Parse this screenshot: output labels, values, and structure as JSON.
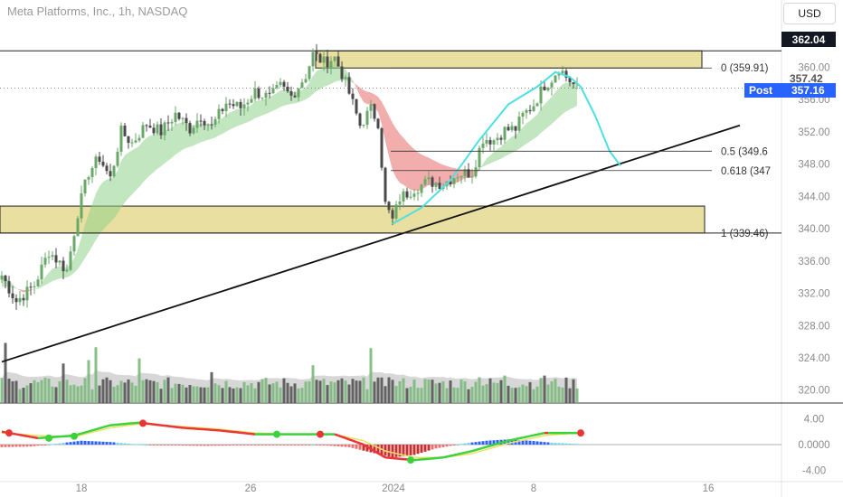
{
  "header": {
    "symbol_title": "Meta Platforms, Inc., 1h, NASDAQ",
    "currency_button": "USD"
  },
  "price_tags": {
    "top_level": "362.04",
    "last_price": "357.42",
    "post_label": "Post",
    "post_price": "357.16"
  },
  "colors": {
    "up": "#6aa86a",
    "down": "#4a4a4a",
    "band_up": "#8fd18a",
    "band_down": "#e86a6a",
    "zone_fill": "#e8dfa0",
    "projection": "#4ee0e0",
    "post_blue": "#2962ff",
    "osc_up": "#3ad13a",
    "osc_down": "#e83535"
  },
  "chart_data": [
    {
      "type": "candlestick",
      "title": "",
      "x_tick_labels": [
        "18",
        "26",
        "2024",
        "8",
        "16"
      ],
      "y_tick_labels": [
        "320.00",
        "324.00",
        "328.00",
        "332.00",
        "336.00",
        "340.00",
        "344.00",
        "348.00",
        "352.00",
        "356.00",
        "360.00"
      ],
      "y_ticks": [
        320,
        324,
        328,
        332,
        336,
        340,
        344,
        348,
        352,
        356,
        360
      ],
      "ylim": [
        318.4,
        365.2
      ],
      "n_bars": 160,
      "price_path_keypoints": [
        [
          0,
          334.2
        ],
        [
          4,
          331.0
        ],
        [
          9,
          333.0
        ],
        [
          13,
          337.2
        ],
        [
          18,
          334.8
        ],
        [
          21,
          342.0
        ],
        [
          24,
          347.0
        ],
        [
          27,
          348.8
        ],
        [
          30,
          346.2
        ],
        [
          33,
          352.0
        ],
        [
          36,
          350.6
        ],
        [
          40,
          353.0
        ],
        [
          44,
          352.0
        ],
        [
          48,
          354.2
        ],
        [
          52,
          352.4
        ],
        [
          55,
          354.0
        ],
        [
          58,
          352.6
        ],
        [
          62,
          355.6
        ],
        [
          66,
          355.0
        ],
        [
          70,
          357.0
        ],
        [
          74,
          356.2
        ],
        [
          77,
          357.6
        ],
        [
          80,
          356.4
        ],
        [
          84,
          359.0
        ],
        [
          86,
          361.6
        ],
        [
          89,
          360.6
        ],
        [
          92,
          361.2
        ],
        [
          94,
          359.2
        ],
        [
          96,
          356.8
        ],
        [
          99,
          352.8
        ],
        [
          102,
          354.8
        ],
        [
          104,
          353.2
        ],
        [
          106,
          343.0
        ],
        [
          108,
          341.0
        ],
        [
          110,
          343.8
        ],
        [
          114,
          345.0
        ],
        [
          118,
          345.8
        ],
        [
          122,
          345.6
        ],
        [
          126,
          346.8
        ],
        [
          130,
          347.0
        ],
        [
          133,
          351.2
        ],
        [
          136,
          351.0
        ],
        [
          139,
          352.2
        ],
        [
          142,
          352.4
        ],
        [
          144,
          354.0
        ],
        [
          147,
          355.4
        ],
        [
          150,
          357.8
        ],
        [
          152,
          358.6
        ],
        [
          154,
          360.0
        ],
        [
          156,
          358.8
        ],
        [
          159,
          357.4
        ]
      ],
      "volume_spikes": [
        [
          1,
          7.0
        ],
        [
          26,
          6.5
        ],
        [
          24,
          5.0
        ],
        [
          17,
          4.6
        ],
        [
          38,
          5.2
        ],
        [
          58,
          3.6
        ],
        [
          86,
          4.4
        ],
        [
          102,
          6.4
        ],
        [
          107,
          3.0
        ],
        [
          132,
          3.0
        ],
        [
          139,
          3.2
        ],
        [
          150,
          3.2
        ]
      ],
      "volume_ylim": [
        0,
        10
      ],
      "horizontal_lines": [
        {
          "kind": "level",
          "value": 362.04
        },
        {
          "kind": "level",
          "value": 339.46
        },
        {
          "kind": "dotted",
          "value": 357.42
        }
      ],
      "zones": [
        {
          "from": 359.91,
          "to": 362.04,
          "x_start_bar": 86
        },
        {
          "from": 339.46,
          "to": 342.8,
          "x_start_bar": 0
        }
      ],
      "fibonacci": [
        {
          "label": "0 (359.91)",
          "value": 359.91
        },
        {
          "label": "0.5 (349.6",
          "value": 349.6
        },
        {
          "label": "0.618 (347",
          "value": 347.2
        },
        {
          "label": "1 (339.46)",
          "value": 339.46
        }
      ],
      "trendline": [
        [
          0,
          323.5
        ],
        [
          204,
          352.8
        ]
      ],
      "projection_curve": [
        [
          108,
          340.6
        ],
        [
          116,
          342.6
        ],
        [
          124,
          346.0
        ],
        [
          132,
          351.0
        ],
        [
          140,
          355.4
        ],
        [
          148,
          357.6
        ],
        [
          153,
          359.4
        ],
        [
          157,
          358.8
        ],
        [
          160,
          357.6
        ],
        [
          164,
          354.0
        ],
        [
          168,
          349.6
        ],
        [
          171,
          347.8
        ]
      ]
    },
    {
      "type": "line",
      "title": "",
      "y_tick_labels": [
        "4.00",
        "0.0000",
        "-4.00"
      ],
      "y_ticks": [
        4,
        0,
        -4
      ],
      "ylim": [
        -5.6,
        5.6
      ],
      "series_keypoints": [
        [
          0,
          2.0
        ],
        [
          10,
          1.0
        ],
        [
          20,
          1.4
        ],
        [
          30,
          3.0
        ],
        [
          38,
          3.4
        ],
        [
          50,
          2.6
        ],
        [
          60,
          2.2
        ],
        [
          70,
          1.6
        ],
        [
          80,
          1.6
        ],
        [
          92,
          1.6
        ],
        [
          100,
          0.0
        ],
        [
          106,
          -2.0
        ],
        [
          114,
          -2.4
        ],
        [
          122,
          -2.0
        ],
        [
          130,
          -1.0
        ],
        [
          140,
          0.6
        ],
        [
          150,
          1.8
        ],
        [
          159,
          1.8
        ]
      ],
      "signal_keypoints": [
        [
          0,
          1.8
        ],
        [
          10,
          1.4
        ],
        [
          20,
          1.2
        ],
        [
          30,
          2.6
        ],
        [
          38,
          3.2
        ],
        [
          50,
          2.8
        ],
        [
          60,
          2.4
        ],
        [
          70,
          1.8
        ],
        [
          80,
          1.6
        ],
        [
          92,
          1.6
        ],
        [
          100,
          0.6
        ],
        [
          106,
          -1.0
        ],
        [
          114,
          -2.0
        ],
        [
          122,
          -2.0
        ],
        [
          130,
          -1.4
        ],
        [
          140,
          0.2
        ],
        [
          150,
          1.4
        ],
        [
          159,
          1.8
        ]
      ],
      "histogram_keypoints": [
        [
          0,
          -0.4
        ],
        [
          8,
          -0.3
        ],
        [
          16,
          0.2
        ],
        [
          22,
          0.6
        ],
        [
          30,
          0.4
        ],
        [
          36,
          0.1
        ],
        [
          44,
          -0.1
        ],
        [
          56,
          -0.2
        ],
        [
          70,
          -0.1
        ],
        [
          86,
          0.0
        ],
        [
          96,
          -0.4
        ],
        [
          102,
          -1.2
        ],
        [
          108,
          -2.0
        ],
        [
          114,
          -1.6
        ],
        [
          120,
          -0.6
        ],
        [
          128,
          0.2
        ],
        [
          134,
          0.6
        ],
        [
          140,
          0.8
        ],
        [
          146,
          0.6
        ],
        [
          152,
          0.3
        ],
        [
          159,
          0.1
        ]
      ],
      "cross_markers": [
        {
          "bar": 2,
          "value": 1.8,
          "kind": "down"
        },
        {
          "bar": 13,
          "value": 1.0,
          "kind": "up"
        },
        {
          "bar": 20,
          "value": 1.3,
          "kind": "up"
        },
        {
          "bar": 39,
          "value": 3.3,
          "kind": "down"
        },
        {
          "bar": 76,
          "value": 1.6,
          "kind": "up"
        },
        {
          "bar": 88,
          "value": 1.6,
          "kind": "down"
        },
        {
          "bar": 113,
          "value": -2.4,
          "kind": "up"
        },
        {
          "bar": 160,
          "value": 1.8,
          "kind": "down"
        }
      ]
    }
  ]
}
